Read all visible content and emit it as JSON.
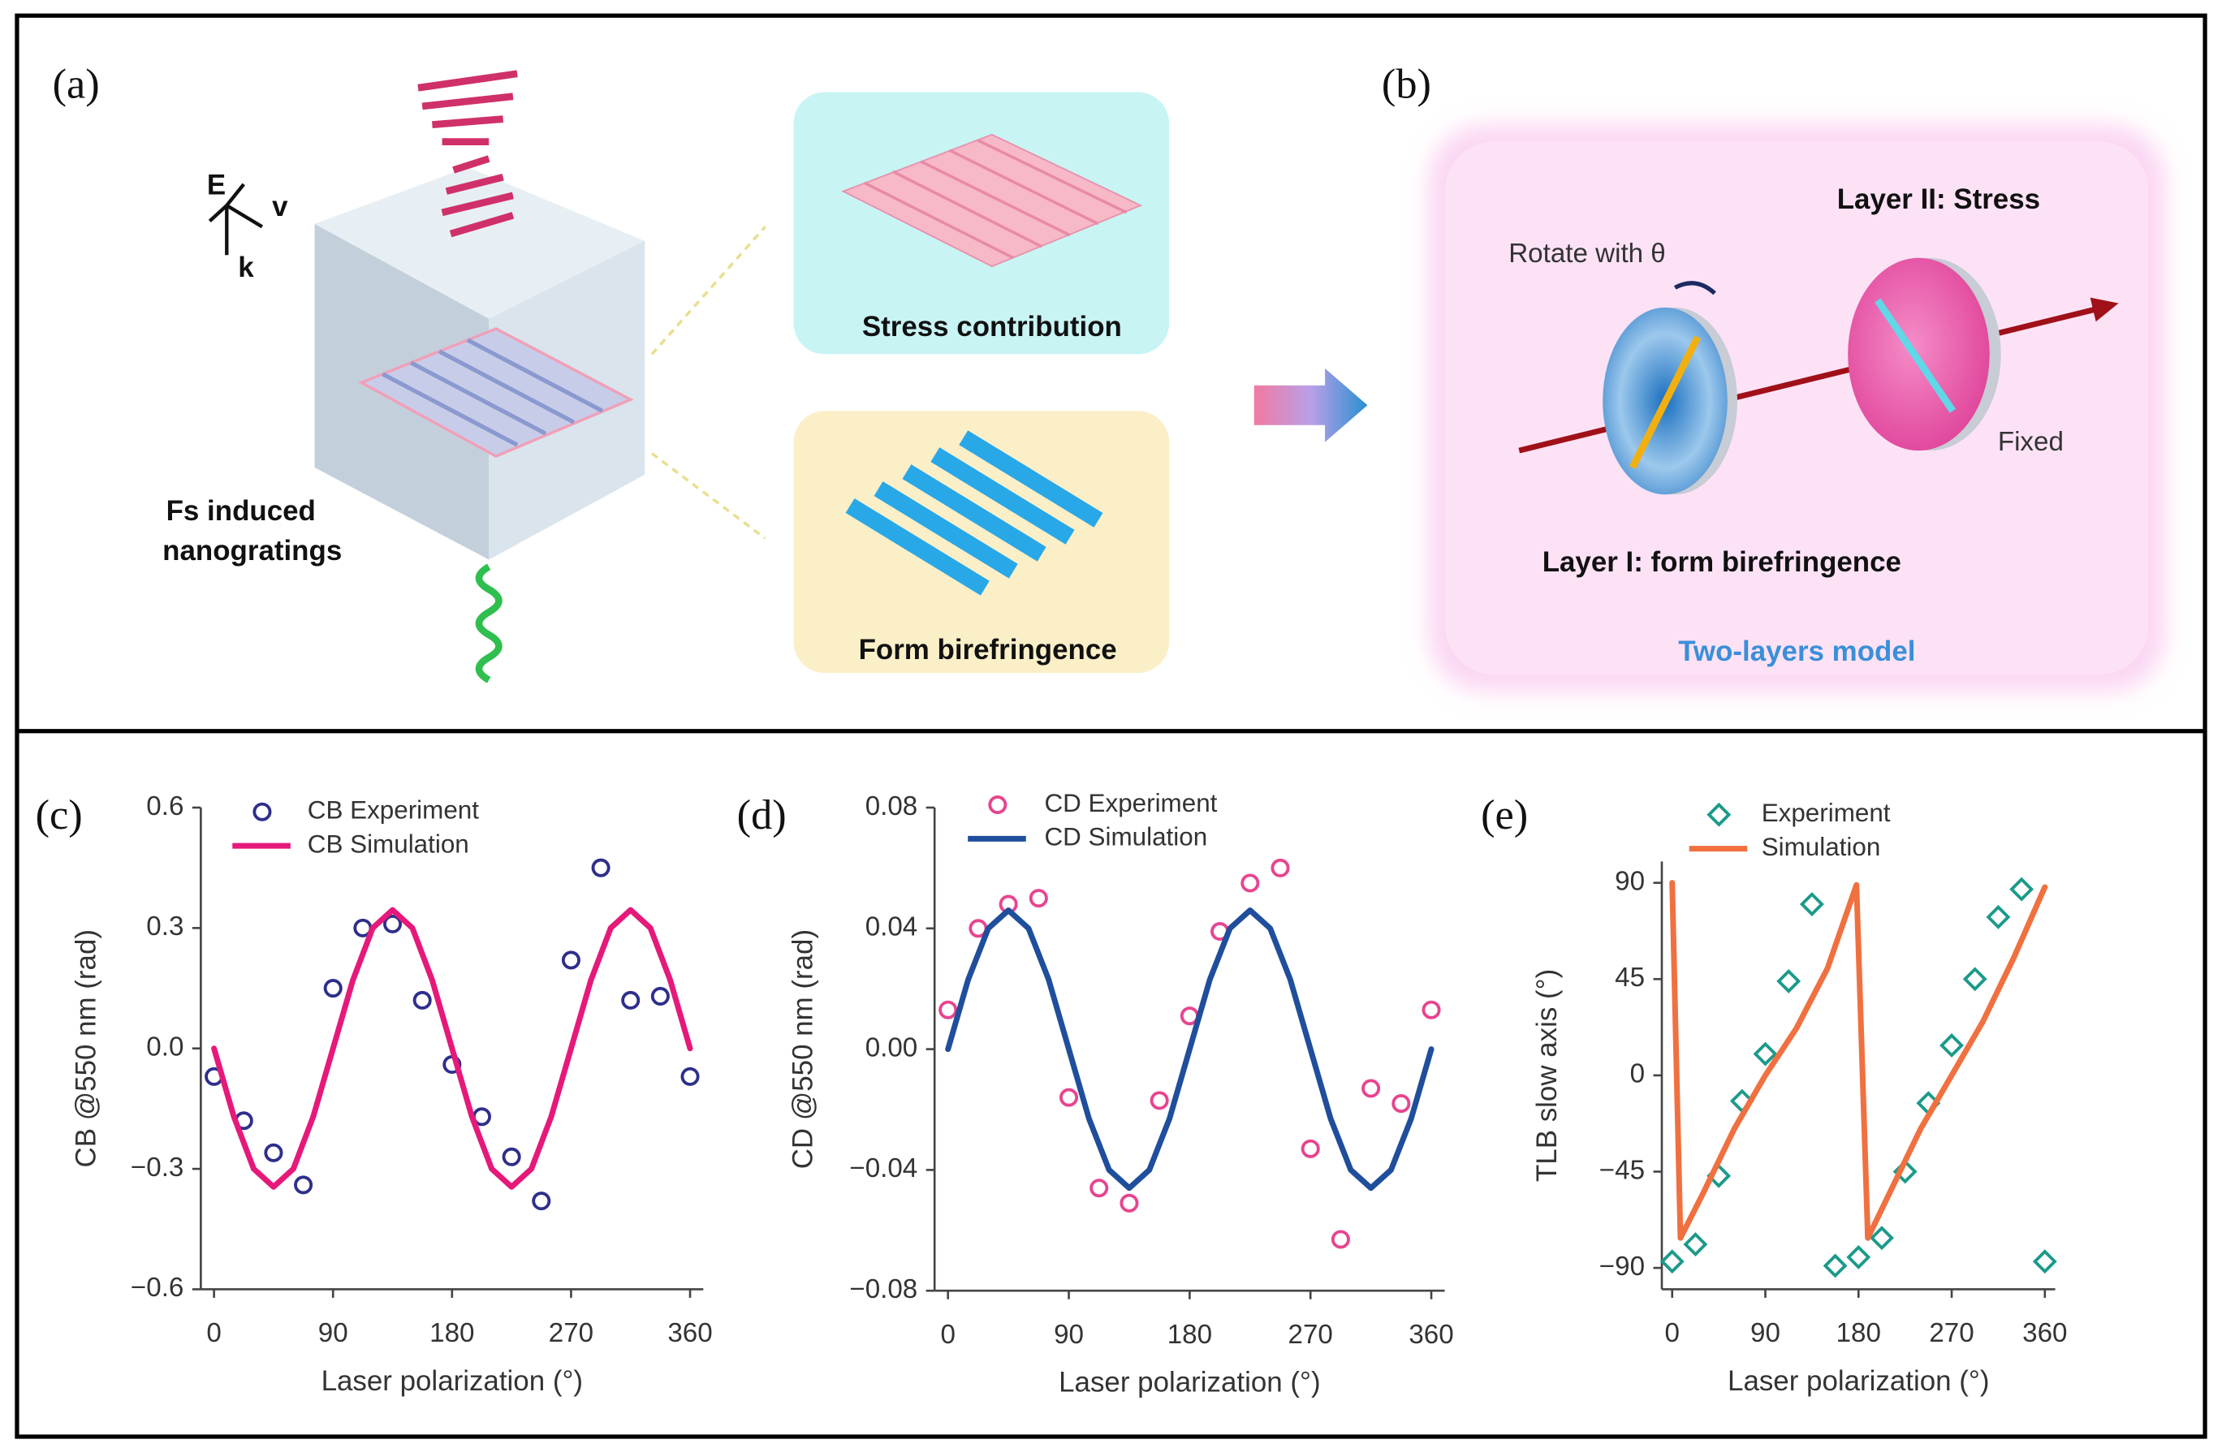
{
  "panels": {
    "a": {
      "label": "(a)",
      "axes": [
        "E",
        "v",
        "k"
      ],
      "nanogratings": [
        "Fs induced",
        "nanogratings"
      ],
      "stress": "Stress contribution",
      "form": "Form birefringence"
    },
    "b": {
      "label": "(b)",
      "layer2": "Layer II: Stress",
      "rotate": "Rotate with θ",
      "fixed": "Fixed",
      "layer1": "Layer I: form birefringence",
      "model": "Two-layers model"
    }
  },
  "chart_data": [
    {
      "type": "scatter",
      "label": "(c)",
      "x_label": "Laser polarization (°)",
      "y_label": "CB @550 nm (rad)",
      "xlim": [
        -10,
        370
      ],
      "xticks": [
        0,
        90,
        180,
        270,
        360
      ],
      "ylim": [
        -0.6,
        0.6
      ],
      "yticks": [
        {
          "value": -0.6,
          "label": "−0.6"
        },
        {
          "value": -0.3,
          "label": "−0.3"
        },
        {
          "value": 0,
          "label": "0.0"
        },
        0.3,
        0.6
      ],
      "grid": false,
      "series": [
        {
          "name": "CB Experiment",
          "kind": "scatter",
          "marker": "circle",
          "color": "#2e2e8c",
          "x": [
            0,
            22.5,
            45,
            67.5,
            90,
            112.5,
            135,
            157.5,
            180,
            202.5,
            225,
            247.5,
            270,
            292.5,
            315,
            337.5,
            360
          ],
          "values": [
            -0.07,
            -0.18,
            -0.26,
            -0.34,
            0.15,
            0.3,
            0.31,
            0.12,
            -0.04,
            -0.17,
            -0.27,
            -0.38,
            0.22,
            0.45,
            0.12,
            0.13,
            -0.07
          ]
        },
        {
          "name": "CB Simulation",
          "kind": "line",
          "color": "#e6197a",
          "x": [
            0,
            15,
            30,
            45,
            60,
            75,
            90,
            105,
            120,
            135,
            150,
            165,
            180,
            195,
            210,
            225,
            240,
            255,
            270,
            285,
            300,
            315,
            330,
            345,
            360
          ],
          "values": [
            0,
            -0.17,
            -0.3,
            -0.345,
            -0.3,
            -0.17,
            0,
            0.17,
            0.3,
            0.345,
            0.3,
            0.17,
            0,
            -0.17,
            -0.3,
            -0.345,
            -0.3,
            -0.17,
            0,
            0.17,
            0.3,
            0.345,
            0.3,
            0.17,
            0
          ]
        }
      ]
    },
    {
      "type": "scatter",
      "label": "(d)",
      "x_label": "Laser polarization (°)",
      "y_label": "CD @550 nm (rad)",
      "xlim": [
        -10,
        370
      ],
      "xticks": [
        0,
        90,
        180,
        270,
        360
      ],
      "ylim": [
        -0.08,
        0.08
      ],
      "yticks": [
        {
          "value": -0.08,
          "label": "−0.08"
        },
        {
          "value": -0.04,
          "label": "−0.04"
        },
        {
          "value": 0,
          "label": "0.00"
        },
        0.04,
        0.08
      ],
      "grid": false,
      "series": [
        {
          "name": "CD Experiment",
          "kind": "scatter",
          "marker": "circle",
          "color": "#e8448f",
          "x": [
            0,
            22.5,
            45,
            67.5,
            90,
            112.5,
            135,
            157.5,
            180,
            202.5,
            225,
            247.5,
            270,
            292.5,
            315,
            337.5,
            360
          ],
          "values": [
            0.013,
            0.04,
            0.048,
            0.05,
            -0.016,
            -0.046,
            -0.051,
            -0.017,
            0.011,
            0.039,
            0.055,
            0.06,
            -0.033,
            -0.063,
            -0.013,
            -0.018,
            0.013
          ]
        },
        {
          "name": "CD Simulation",
          "kind": "line",
          "color": "#1f4e9c",
          "x": [
            0,
            15,
            30,
            45,
            60,
            75,
            90,
            105,
            120,
            135,
            150,
            165,
            180,
            195,
            210,
            225,
            240,
            255,
            270,
            285,
            300,
            315,
            330,
            345,
            360
          ],
          "values": [
            0,
            0.023,
            0.04,
            0.046,
            0.04,
            0.023,
            0,
            -0.023,
            -0.04,
            -0.046,
            -0.04,
            -0.023,
            0,
            0.023,
            0.04,
            0.046,
            0.04,
            0.023,
            0,
            -0.023,
            -0.04,
            -0.046,
            -0.04,
            -0.023,
            0
          ]
        }
      ]
    },
    {
      "type": "scatter",
      "label": "(e)",
      "x_label": "Laser polarization (°)",
      "y_label": "TLB slow axis (°)",
      "xlim": [
        -10,
        370
      ],
      "xticks": [
        0,
        90,
        180,
        270,
        360
      ],
      "ylim": [
        -100,
        100
      ],
      "yticks": [
        {
          "value": -90,
          "label": "−90"
        },
        {
          "value": -45,
          "label": "−45"
        },
        0,
        45,
        90
      ],
      "grid": false,
      "series": [
        {
          "name": "Experiment",
          "kind": "scatter",
          "marker": "diamond",
          "color": "#1a9a8a",
          "x": [
            0,
            22.5,
            45,
            67.5,
            90,
            112.5,
            135,
            157.5,
            180,
            202.5,
            225,
            247.5,
            270,
            292.5,
            315,
            337.5,
            360
          ],
          "values": [
            -87,
            -79,
            -47,
            -12,
            10,
            44,
            80,
            -89,
            -85,
            -76,
            -45,
            -13,
            14,
            45,
            74,
            87,
            -87
          ]
        },
        {
          "name": "Simulation",
          "kind": "line",
          "color": "#f07040",
          "x": [
            0,
            8,
            30,
            60,
            90,
            120,
            150,
            178,
            189,
            210,
            240,
            270,
            300,
            330,
            360
          ],
          "values": [
            90,
            -76,
            -55,
            -25,
            0,
            22,
            50,
            89,
            -76,
            -55,
            -25,
            0,
            25,
            55,
            88
          ]
        }
      ]
    }
  ]
}
